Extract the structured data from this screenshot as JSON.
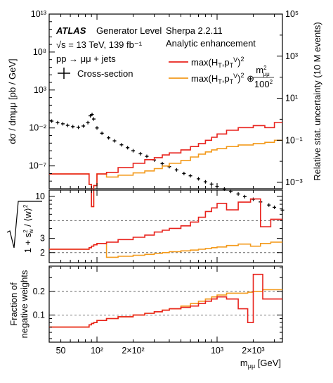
{
  "chart_data": [
    {
      "type": "line",
      "panel": "top",
      "ylabel": "dσ / dmμμ [pb / GeV]",
      "ylabel_right": "Relative stat. uncertainty (10 M events)",
      "yscale": "log",
      "ylim": [
        1e-10,
        10000000000000.0
      ],
      "ylim_right": [
        0.0005,
        100000
      ],
      "left_ticks": [
        "10¹³",
        "10⁸",
        "10³",
        "10⁻²",
        "10⁻⁷"
      ],
      "right_ticks": [
        "10⁵",
        "10³",
        "10¹",
        "10⁻¹",
        "10⁻³"
      ],
      "annotations": {
        "atlas": "ATLAS",
        "atlas_rest": "Generator Level",
        "energy": "√s = 13 TeV, 139 fb⁻¹",
        "process": "pp → μμ + jets",
        "xsec_legend": "Cross-section",
        "sherpa": "Sherpa 2.2.11",
        "enhancement": "Analytic enhancement",
        "red_label": "max(H_T,p_T^V)²",
        "orange_label": "max(H_T,p_T^V)² ⊕ m²μμ/100²"
      },
      "cross_section": {
        "x": [
          42,
          47,
          52,
          57,
          63,
          70,
          77,
          84,
          88,
          91,
          94,
          100,
          110,
          125,
          140,
          160,
          180,
          200,
          230,
          260,
          300,
          350,
          400,
          460,
          530,
          600,
          700,
          800,
          900,
          1000,
          1150,
          1300,
          1500,
          1700,
          2000,
          2300,
          2700,
          3000,
          3500
        ],
        "y": [
          0.08,
          0.05,
          0.035,
          0.022,
          0.015,
          0.012,
          0.018,
          0.05,
          0.4,
          0.6,
          0.15,
          0.01,
          0.002,
          0.0005,
          0.0002,
          6e-05,
          2.5e-05,
          1e-05,
          4e-06,
          1.8e-06,
          6e-07,
          2e-07,
          8e-08,
          3e-08,
          1e-08,
          5e-09,
          2e-09,
          8e-10,
          4e-10,
          2e-10,
          9e-11,
          4.5e-11,
          2e-11,
          9e-12,
          4e-12,
          1.8e-12,
          7e-13,
          3.5e-13,
          1.5e-13
        ]
      },
      "red_uncertainty": {
        "edges": [
          40,
          86,
          90,
          94,
          100,
          120,
          150,
          200,
          250,
          300,
          350,
          400,
          500,
          600,
          700,
          800,
          900,
          1000,
          1200,
          1500,
          2000,
          2500,
          3000,
          3500
        ],
        "values": [
          0.0025,
          0.0008,
          7e-05,
          0.0007,
          0.0025,
          0.003,
          0.005,
          0.008,
          0.012,
          0.015,
          0.02,
          0.025,
          0.035,
          0.05,
          0.07,
          0.1,
          0.14,
          0.2,
          0.3,
          0.4,
          0.5,
          0.4,
          0.7
        ]
      },
      "orange_uncertainty": {
        "edges": [
          40,
          86,
          90,
          94,
          100,
          120,
          150,
          200,
          250,
          300,
          350,
          400,
          500,
          600,
          700,
          800,
          900,
          1000,
          1200,
          1500,
          2000,
          2500,
          3000,
          3500
        ],
        "values": [
          0.0025,
          0.0008,
          7e-05,
          0.0007,
          0.0025,
          0.0018,
          0.0022,
          0.0028,
          0.0035,
          0.0045,
          0.006,
          0.008,
          0.011,
          0.016,
          0.022,
          0.028,
          0.035,
          0.04,
          0.05,
          0.06,
          0.07,
          0.08,
          0.1
        ]
      }
    },
    {
      "type": "line",
      "panel": "middle",
      "ylabel": "sqrt(1 + s_w² / ⟨w⟩²)",
      "yscale": "log",
      "ylim": [
        1.5,
        12
      ],
      "ticks": [
        "10",
        "3",
        "2"
      ],
      "dashed_lines": [
        5,
        2
      ],
      "red": {
        "edges": [
          40,
          86,
          90,
          94,
          100,
          120,
          150,
          200,
          250,
          300,
          350,
          400,
          500,
          600,
          700,
          800,
          900,
          1000,
          1200,
          1500,
          1900,
          2300,
          2800,
          3500
        ],
        "values": [
          2.2,
          2.3,
          2.4,
          2.5,
          2.6,
          2.7,
          2.9,
          3.1,
          3.3,
          3.6,
          3.8,
          4.0,
          4.3,
          4.8,
          5.5,
          6.5,
          7.2,
          8.2,
          6.8,
          8.5,
          9.3,
          4.2,
          5.2
        ]
      },
      "orange": {
        "edges": [
          40,
          86,
          90,
          94,
          100,
          120,
          150,
          200,
          250,
          300,
          350,
          400,
          500,
          600,
          700,
          800,
          900,
          1000,
          1200,
          1500,
          1900,
          2300,
          2800,
          3500
        ],
        "values": [
          2.2,
          2.3,
          2.4,
          2.5,
          2.6,
          1.75,
          1.8,
          1.85,
          1.9,
          1.95,
          2.0,
          2.05,
          2.1,
          2.15,
          2.2,
          2.25,
          2.3,
          2.35,
          2.45,
          2.55,
          2.4,
          2.6,
          2.7
        ]
      }
    },
    {
      "type": "line",
      "panel": "bottom",
      "ylabel_line1": "Fraction of",
      "ylabel_line2": "negative weights",
      "yscale": "log",
      "ylim": [
        0.045,
        0.42
      ],
      "ticks": [
        "0.2",
        "0.1"
      ],
      "dashed_lines": [
        0.2,
        0.1
      ],
      "xlabel": "mμμ [GeV]",
      "xscale": "log",
      "xlim": [
        40,
        3500
      ],
      "xticks": [
        "50",
        "10²",
        "2×10²",
        "10³",
        "2×10³"
      ],
      "red": {
        "edges": [
          40,
          86,
          90,
          94,
          100,
          120,
          150,
          200,
          250,
          300,
          350,
          400,
          500,
          600,
          700,
          800,
          900,
          1000,
          1200,
          1500,
          1800,
          2000,
          2400,
          3500
        ],
        "values": [
          0.07,
          0.075,
          0.078,
          0.08,
          0.085,
          0.09,
          0.095,
          0.1,
          0.105,
          0.11,
          0.115,
          0.12,
          0.125,
          0.13,
          0.14,
          0.15,
          0.16,
          0.17,
          0.16,
          0.12,
          0.08,
          0.33,
          0.16
        ]
      },
      "orange": {
        "edges": [
          40,
          86,
          90,
          94,
          100,
          120,
          150,
          200,
          250,
          300,
          350,
          400,
          500,
          600,
          700,
          800,
          900,
          1000,
          1200,
          1500,
          1800,
          2000,
          2400,
          3500
        ],
        "values": [
          0.07,
          0.075,
          0.078,
          0.08,
          0.085,
          0.09,
          0.095,
          0.1,
          0.105,
          0.11,
          0.115,
          0.12,
          0.13,
          0.14,
          0.15,
          0.16,
          0.17,
          0.18,
          0.19,
          0.19,
          0.195,
          0.2,
          0.21
        ]
      }
    }
  ],
  "colors": {
    "red": "#e8221c",
    "orange": "#f39a1b",
    "black": "#000000"
  }
}
